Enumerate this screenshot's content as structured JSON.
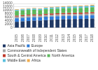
{
  "chart_data": {
    "type": "bar",
    "stacked": true,
    "grid": true,
    "legend": "bottom",
    "categories": [
      "2005",
      "2006",
      "2007",
      "2008",
      "2009",
      "2010",
      "2011",
      "2012",
      "2013",
      "2014",
      "2015",
      "2016",
      "2017",
      "2018"
    ],
    "series": [
      {
        "name": "Asia Pacific",
        "color": "#1f3864",
        "values": [
          3500,
          3750,
          3950,
          4100,
          4200,
          4450,
          4650,
          4800,
          4950,
          5050,
          5100,
          5150,
          5250,
          5400
        ]
      },
      {
        "name": "Europe",
        "color": "#2f7bd6",
        "values": [
          2000,
          2020,
          2010,
          1990,
          1880,
          1950,
          1900,
          1890,
          1880,
          1820,
          1850,
          1870,
          1900,
          1900
        ]
      },
      {
        "name": "Commonwealth of Independent States",
        "color": "#a5a5a5",
        "values": [
          950,
          970,
          980,
          990,
          930,
          970,
          1000,
          1000,
          990,
          990,
          980,
          990,
          1000,
          1020
        ]
      },
      {
        "name": "South & Central America",
        "color": "#c0392b",
        "values": [
          550,
          570,
          590,
          610,
          610,
          650,
          670,
          690,
          700,
          710,
          710,
          700,
          700,
          710
        ]
      },
      {
        "name": "North America",
        "color": "#5cb85c",
        "values": [
          2800,
          2780,
          2820,
          2750,
          2620,
          2720,
          2720,
          2660,
          2730,
          2760,
          2750,
          2740,
          2760,
          2850
        ]
      },
      {
        "name": "Middle East",
        "color": "#5bc0de",
        "values": [
          550,
          580,
          610,
          650,
          680,
          720,
          750,
          780,
          810,
          840,
          870,
          890,
          900,
          910
        ]
      },
      {
        "name": "Africa",
        "color": "#f0ad4e",
        "values": [
          330,
          340,
          350,
          360,
          360,
          380,
          380,
          400,
          410,
          420,
          430,
          440,
          450,
          460
        ]
      }
    ],
    "ylim": [
      0,
      14000
    ],
    "yticks": [
      0,
      2000,
      4000,
      6000,
      8000,
      10000,
      12000,
      14000
    ]
  }
}
